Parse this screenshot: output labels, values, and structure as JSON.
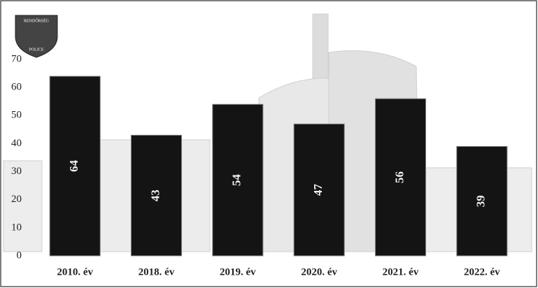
{
  "logo": {
    "top": "RENDŐRSÉG",
    "bottom": "POLICE"
  },
  "chart_data": {
    "type": "bar",
    "categories": [
      "2010. év",
      "2018. év",
      "2019. év",
      "2020. év",
      "2021. év",
      "2022. év"
    ],
    "values": [
      64,
      43,
      54,
      47,
      56,
      39
    ],
    "color": "#141414",
    "ylim": [
      0,
      70
    ],
    "yticks": [
      0,
      10,
      20,
      30,
      40,
      50,
      60,
      70
    ],
    "grid": false
  }
}
